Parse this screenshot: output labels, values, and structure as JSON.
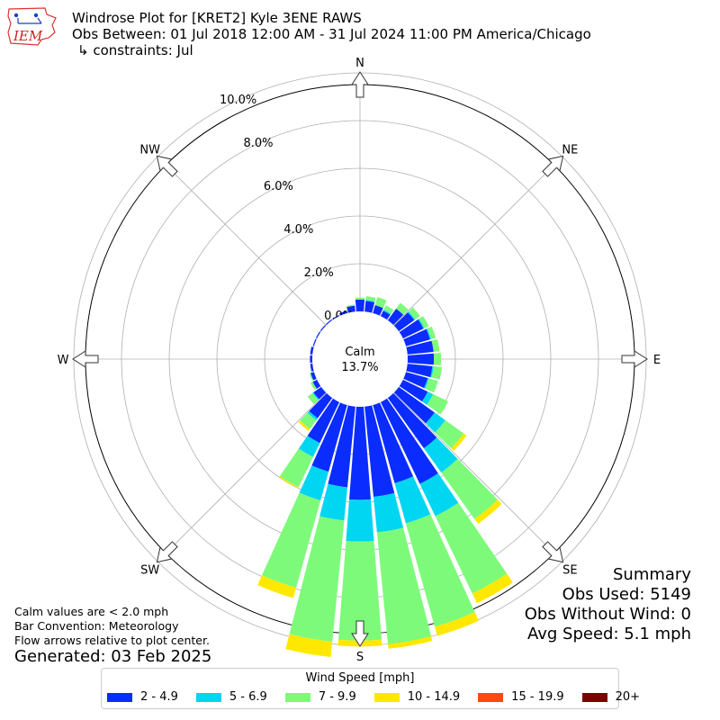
{
  "header": {
    "title": "Windrose Plot for [KRET2] Kyle 3ENE RAWS",
    "subtitle": "Obs Between: 01 Jul 2018 12:00 AM - 31 Jul 2024 11:00 PM America/Chicago",
    "constraints": "↳ constraints: Jul",
    "logo_text": "IEM"
  },
  "footer": {
    "notes": [
      "Calm values are < 2.0 mph",
      "Bar Convention: Meteorology",
      "Flow arrows relative to plot center."
    ],
    "generated": "Generated: 03 Feb 2025"
  },
  "summary": {
    "title": "Summary",
    "obs_used": "Obs Used: 5149",
    "obs_without_wind": "Obs Without Wind: 0",
    "avg_speed": "Avg Speed: 5.1 mph"
  },
  "legend": {
    "title": "Wind Speed [mph]",
    "items": [
      {
        "label": "2 - 4.9",
        "color": "#0b2cff"
      },
      {
        "label": "5 - 6.9",
        "color": "#00d5f2"
      },
      {
        "label": "7 - 9.9",
        "color": "#7dfa7a"
      },
      {
        "label": "10 - 14.9",
        "color": "#ffe800"
      },
      {
        "label": "15 - 19.9",
        "color": "#ff4a0a"
      },
      {
        "label": "20+",
        "color": "#800000"
      }
    ]
  },
  "chart_data": {
    "type": "windrose",
    "calm_label": "Calm",
    "calm_value": "13.7%",
    "radial_ticks": [
      "0.0%",
      "2.0%",
      "4.0%",
      "6.0%",
      "8.0%",
      "10.0%"
    ],
    "radial_tick_values": [
      0,
      2,
      4,
      6,
      8,
      10
    ],
    "directions": [
      "N",
      "NE",
      "E",
      "SE",
      "S",
      "SW",
      "W",
      "NW"
    ],
    "bins": [
      "2 - 4.9",
      "5 - 6.9",
      "7 - 9.9",
      "10 - 14.9",
      "15 - 19.9",
      "20+"
    ],
    "sectors": [
      {
        "dir": 0,
        "values": [
          0.5,
          0.0,
          0.08,
          0.0,
          0,
          0
        ]
      },
      {
        "dir": 10,
        "values": [
          0.45,
          0.05,
          0.15,
          0.0,
          0,
          0
        ]
      },
      {
        "dir": 20,
        "values": [
          0.35,
          0.0,
          0.35,
          0.0,
          0,
          0
        ]
      },
      {
        "dir": 30,
        "values": [
          0.25,
          0.05,
          0.2,
          0.0,
          0,
          0
        ]
      },
      {
        "dir": 40,
        "values": [
          0.6,
          0.0,
          0.3,
          0.0,
          0,
          0
        ]
      },
      {
        "dir": 50,
        "values": [
          0.8,
          0.05,
          0.25,
          0.0,
          0,
          0
        ]
      },
      {
        "dir": 60,
        "values": [
          0.95,
          0.05,
          0.2,
          0.0,
          0,
          0
        ]
      },
      {
        "dir": 70,
        "values": [
          1.05,
          0.05,
          0.2,
          0.0,
          0,
          0
        ]
      },
      {
        "dir": 80,
        "values": [
          1.1,
          0.0,
          0.25,
          0.0,
          0,
          0
        ]
      },
      {
        "dir": 90,
        "values": [
          1.1,
          0.0,
          0.3,
          0.0,
          0,
          0
        ]
      },
      {
        "dir": 100,
        "values": [
          1.05,
          0.05,
          0.35,
          0.0,
          0,
          0
        ]
      },
      {
        "dir": 110,
        "values": [
          0.95,
          0.05,
          0.4,
          0.0,
          0,
          0
        ]
      },
      {
        "dir": 120,
        "values": [
          1.15,
          0.25,
          0.7,
          0.0,
          0,
          0
        ]
      },
      {
        "dir": 130,
        "values": [
          1.85,
          0.55,
          0.95,
          0.15,
          0,
          0
        ]
      },
      {
        "dir": 140,
        "values": [
          2.6,
          1.25,
          2.4,
          0.25,
          0,
          0
        ]
      },
      {
        "dir": 150,
        "values": [
          3.8,
          1.5,
          3.6,
          0.45,
          0,
          0
        ]
      },
      {
        "dir": 160,
        "values": [
          3.4,
          1.75,
          4.5,
          0.4,
          0,
          0
        ]
      },
      {
        "dir": 170,
        "values": [
          3.8,
          1.5,
          4.7,
          0.2,
          0,
          0
        ]
      },
      {
        "dir": 180,
        "values": [
          3.9,
          1.75,
          4.15,
          0.25,
          0,
          0
        ]
      },
      {
        "dir": 190,
        "values": [
          3.4,
          1.4,
          5.1,
          0.65,
          0,
          0
        ]
      },
      {
        "dir": 200,
        "values": [
          2.9,
          1.25,
          3.8,
          0.45,
          0,
          0
        ]
      },
      {
        "dir": 210,
        "values": [
          1.9,
          0.65,
          1.4,
          0.05,
          0,
          0
        ]
      },
      {
        "dir": 220,
        "values": [
          1.05,
          0.1,
          0.45,
          0.1,
          0,
          0
        ]
      },
      {
        "dir": 230,
        "values": [
          0.4,
          0.05,
          0.25,
          0.0,
          0,
          0
        ]
      },
      {
        "dir": 240,
        "values": [
          0.2,
          0.0,
          0.1,
          0.0,
          0,
          0
        ]
      },
      {
        "dir": 250,
        "values": [
          0.15,
          0.0,
          0.05,
          0.0,
          0,
          0
        ]
      },
      {
        "dir": 260,
        "values": [
          0.1,
          0.0,
          0.0,
          0.0,
          0,
          0
        ]
      },
      {
        "dir": 270,
        "values": [
          0.1,
          0.0,
          0.0,
          0.0,
          0,
          0
        ]
      },
      {
        "dir": 280,
        "values": [
          0.1,
          0.0,
          0.0,
          0.0,
          0,
          0
        ]
      },
      {
        "dir": 290,
        "values": [
          0.05,
          0.0,
          0.0,
          0.0,
          0,
          0
        ]
      },
      {
        "dir": 300,
        "values": [
          0.05,
          0.0,
          0.0,
          0.0,
          0,
          0
        ]
      },
      {
        "dir": 310,
        "values": [
          0.05,
          0.0,
          0.0,
          0.0,
          0,
          0
        ]
      },
      {
        "dir": 320,
        "values": [
          0.05,
          0.0,
          0.0,
          0.0,
          0,
          0
        ]
      },
      {
        "dir": 330,
        "values": [
          0.05,
          0.0,
          0.0,
          0.0,
          0,
          0
        ]
      },
      {
        "dir": 340,
        "values": [
          0.1,
          0.0,
          0.0,
          0.0,
          0,
          0
        ]
      },
      {
        "dir": 350,
        "values": [
          0.25,
          0.0,
          0.05,
          0.0,
          0,
          0
        ]
      }
    ]
  }
}
